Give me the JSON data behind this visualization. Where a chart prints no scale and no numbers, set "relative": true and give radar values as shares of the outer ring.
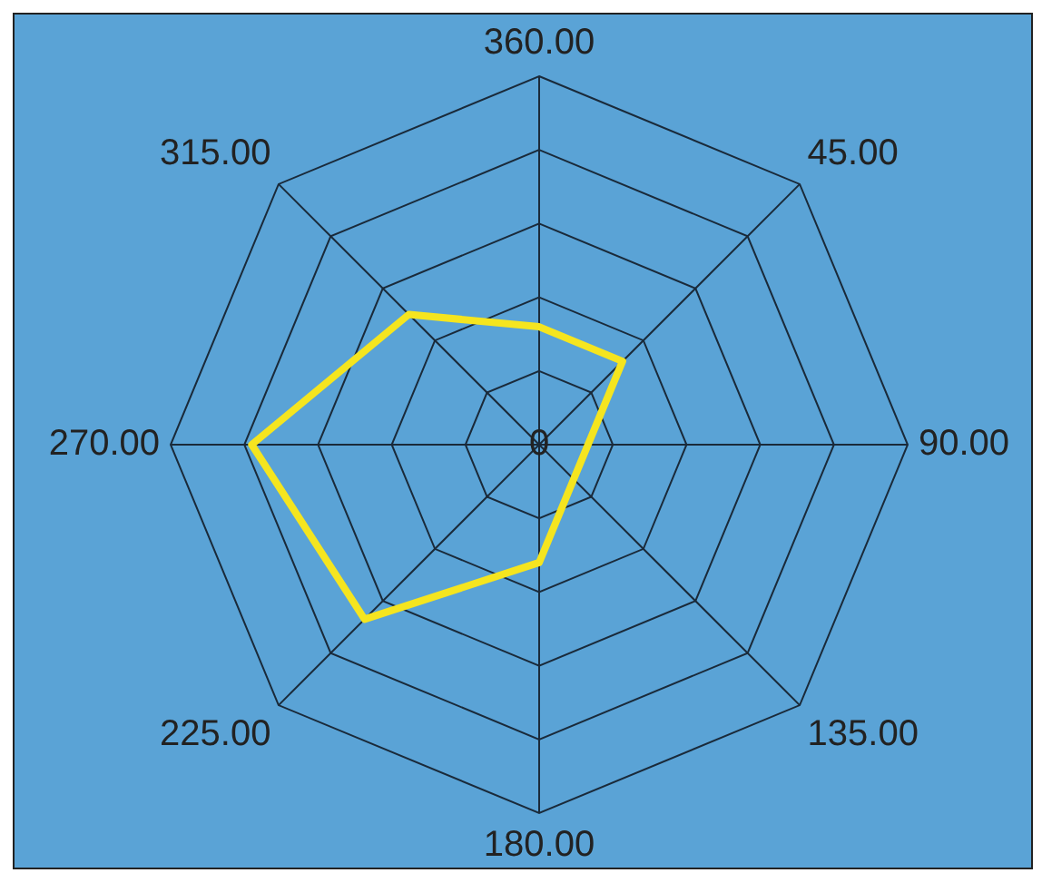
{
  "chart_data": {
    "type": "radar",
    "relative": true,
    "categories": [
      "360.00",
      "45.00",
      "90.00",
      "135.00",
      "180.00",
      "225.00",
      "270.00",
      "315.00"
    ],
    "series": [
      {
        "color": "#f5e51f",
        "values": [
          0.32,
          0.32,
          null,
          null,
          0.32,
          0.67,
          0.78,
          0.5
        ]
      }
    ],
    "annotations": [
      "0"
    ],
    "grid": true,
    "legend": false,
    "marker": "none",
    "line_style": "solid"
  }
}
